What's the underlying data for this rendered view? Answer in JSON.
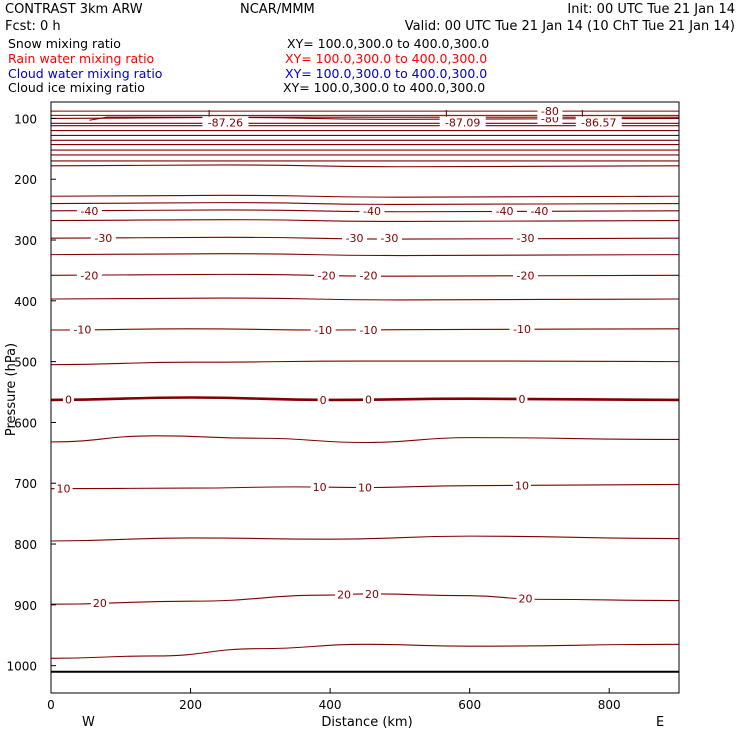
{
  "header": {
    "model": "CONTRAST  3km ARW",
    "org": "NCAR/MMM",
    "init": "Init: 00 UTC Tue 21 Jan 14",
    "fcst": "Fcst:     0 h",
    "valid": "Valid: 00 UTC Tue 21 Jan 14 (10 ChT Tue 21 Jan 14)"
  },
  "legend": [
    {
      "label": "Snow mixing ratio",
      "xy": "XY= 100.0,300.0 to 400.0,300.0",
      "color": "#000000"
    },
    {
      "label": "Rain water mixing ratio",
      "xy": "XY= 100.0,300.0 to 400.0,300.0",
      "color": "#ff0000"
    },
    {
      "label": "Cloud water mixing ratio",
      "xy": "XY= 100.0,300.0 to 400.0,300.0",
      "color": "#0000cc"
    },
    {
      "label": "Cloud ice mixing ratio",
      "xy": "XY= 100.0,300.0 to 400.0,300.0",
      "color": "#000000"
    }
  ],
  "colors": {
    "contour": "#800000",
    "axes": "#000000",
    "background": "#ffffff"
  },
  "chart_data": {
    "type": "line",
    "xlabel": "Distance (km)",
    "ylabel": "Pressure (hPa)",
    "x_ticks": [
      "0",
      "200",
      "400",
      "600",
      "800"
    ],
    "y_ticks": [
      "100",
      "200",
      "300",
      "400",
      "500",
      "600",
      "700",
      "800",
      "900",
      "1000"
    ],
    "xlim": [
      0,
      900
    ],
    "ylim": [
      1045,
      73
    ],
    "direction_labels": {
      "left": "W",
      "right": "E"
    },
    "surface_pressure": 1010,
    "contour_interval": 5,
    "contours": [
      {
        "value": -10,
        "points": [
          [
            0,
            448
          ],
          [
            200,
            446
          ],
          [
            400,
            448
          ],
          [
            600,
            447
          ],
          [
            900,
            446
          ]
        ],
        "labels": [
          {
            "x": 45,
            "text": "-10"
          },
          {
            "x": 390,
            "text": "-10"
          },
          {
            "x": 455,
            "text": "-10"
          },
          {
            "x": 675,
            "text": "-10"
          }
        ]
      },
      {
        "value": -5,
        "points": [
          [
            0,
            505
          ],
          [
            200,
            501
          ],
          [
            450,
            499
          ],
          [
            650,
            499
          ],
          [
            900,
            500
          ]
        ],
        "labels": []
      },
      {
        "value": 0,
        "bold": true,
        "points": [
          [
            0,
            563
          ],
          [
            200,
            559
          ],
          [
            400,
            563
          ],
          [
            600,
            561
          ],
          [
            900,
            563
          ]
        ],
        "labels": [
          {
            "x": 25,
            "text": "0"
          },
          {
            "x": 390,
            "text": "0"
          },
          {
            "x": 455,
            "text": "0"
          },
          {
            "x": 675,
            "text": "0"
          }
        ]
      },
      {
        "value": 5,
        "points": [
          [
            0,
            632
          ],
          [
            150,
            622
          ],
          [
            300,
            626
          ],
          [
            450,
            633
          ],
          [
            600,
            625
          ],
          [
            900,
            628
          ]
        ],
        "labels": []
      },
      {
        "value": 10,
        "points": [
          [
            0,
            709
          ],
          [
            200,
            708
          ],
          [
            350,
            706
          ],
          [
            450,
            707
          ],
          [
            600,
            704
          ],
          [
            900,
            702
          ]
        ],
        "labels": [
          {
            "x": 18,
            "text": "10"
          },
          {
            "x": 385,
            "text": "10"
          },
          {
            "x": 450,
            "text": "10"
          },
          {
            "x": 675,
            "text": "10"
          }
        ]
      },
      {
        "value": 15,
        "points": [
          [
            0,
            795
          ],
          [
            200,
            790
          ],
          [
            400,
            792
          ],
          [
            600,
            787
          ],
          [
            900,
            791
          ]
        ],
        "labels": []
      },
      {
        "value": 20,
        "points": [
          [
            0,
            899
          ],
          [
            200,
            894
          ],
          [
            400,
            884
          ],
          [
            450,
            882
          ],
          [
            600,
            885
          ],
          [
            700,
            891
          ],
          [
            900,
            893
          ]
        ],
        "labels": [
          {
            "x": 70,
            "text": "20"
          },
          {
            "x": 420,
            "text": "20"
          },
          {
            "x": 460,
            "text": "20"
          },
          {
            "x": 680,
            "text": "20"
          }
        ]
      },
      {
        "value": 25,
        "points": [
          [
            0,
            988
          ],
          [
            150,
            984
          ],
          [
            300,
            972
          ],
          [
            450,
            965
          ],
          [
            600,
            968
          ],
          [
            900,
            965
          ]
        ],
        "labels": []
      }
    ],
    "upper_levels": [
      {
        "value": -80,
        "pressure": 100,
        "labels": [
          {
            "x": 715,
            "text": "-80"
          }
        ]
      },
      {
        "value": -55,
        "pressure": 178,
        "labels": []
      },
      {
        "value": -50,
        "pressure": 228,
        "labels": []
      },
      {
        "value": -45,
        "pressure": 240,
        "labels": []
      },
      {
        "value": -40,
        "pressure": 252,
        "labels": [
          {
            "x": 55,
            "text": "-40"
          },
          {
            "x": 460,
            "text": "-40"
          },
          {
            "x": 650,
            "text": "-40"
          },
          {
            "x": 700,
            "text": "-40"
          }
        ]
      },
      {
        "value": -35,
        "pressure": 268,
        "labels": []
      },
      {
        "value": -30,
        "pressure": 297,
        "labels": [
          {
            "x": 75,
            "text": "-30"
          },
          {
            "x": 435,
            "text": "-30"
          },
          {
            "x": 485,
            "text": "-30"
          },
          {
            "x": 680,
            "text": "-30"
          }
        ]
      },
      {
        "value": -25,
        "pressure": 324,
        "labels": []
      },
      {
        "value": -20,
        "pressure": 358,
        "labels": [
          {
            "x": 55,
            "text": "-20"
          },
          {
            "x": 395,
            "text": "-20"
          },
          {
            "x": 455,
            "text": "-20"
          },
          {
            "x": 680,
            "text": "-20"
          }
        ]
      },
      {
        "value": -15,
        "pressure": 397,
        "labels": []
      }
    ],
    "lows": [
      {
        "x": 250,
        "text": "-87.26"
      },
      {
        "x": 590,
        "text": "-87.09"
      },
      {
        "x": 785,
        "text": "-86.57"
      }
    ]
  }
}
